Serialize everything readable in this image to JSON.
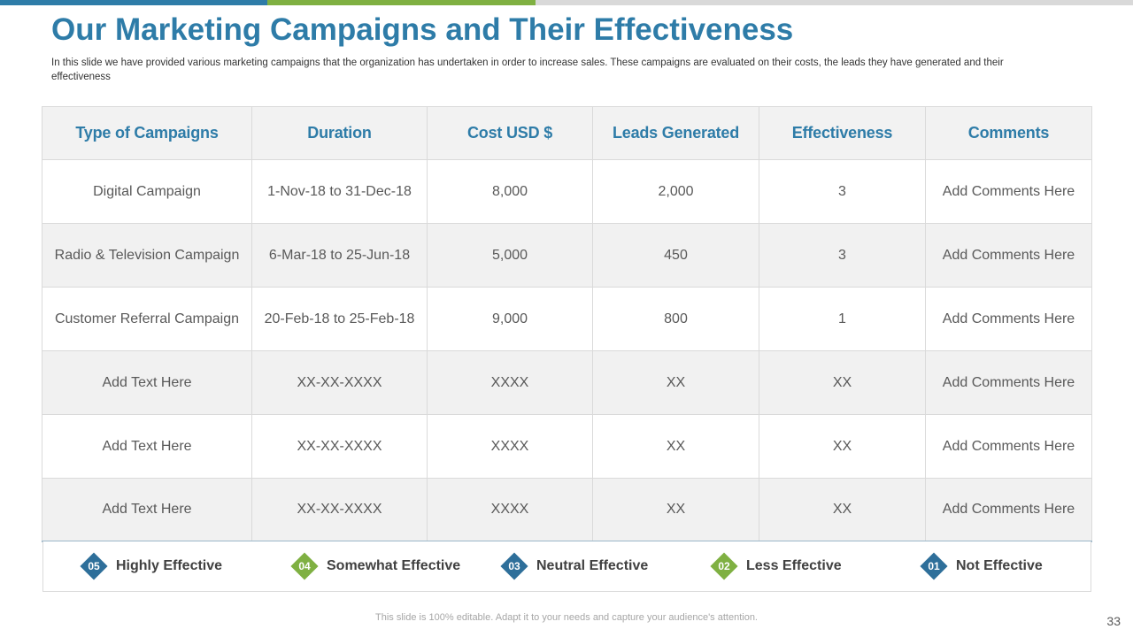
{
  "colors": {
    "accent_blue": "#2E7CA8",
    "accent_green": "#7FB042",
    "bar_gray": "#D9D9D9",
    "diamond_blue": "#2E6F9A"
  },
  "title": "Our Marketing Campaigns and Their Effectiveness",
  "subtitle": "In this slide we have provided various  marketing campaigns that the organization has undertaken  in order  to increase sales. These campaigns are evaluated  on their costs, the leads they have generated  and their effectiveness",
  "table": {
    "headers": [
      "Type of Campaigns",
      "Duration",
      "Cost USD $",
      "Leads Generated",
      "Effectiveness",
      "Comments"
    ],
    "rows": [
      [
        "Digital Campaign",
        "1-Nov-18 to 31-Dec-18",
        "8,000",
        "2,000",
        "3",
        "Add Comments Here"
      ],
      [
        "Radio & Television Campaign",
        "6-Mar-18 to 25-Jun-18",
        "5,000",
        "450",
        "3",
        "Add Comments Here"
      ],
      [
        "Customer Referral Campaign",
        "20-Feb-18 to 25-Feb-18",
        "9,000",
        "800",
        "1",
        "Add Comments Here"
      ],
      [
        "Add Text Here",
        "XX-XX-XXXX",
        "XXXX",
        "XX",
        "XX",
        "Add Comments Here"
      ],
      [
        "Add Text Here",
        "XX-XX-XXXX",
        "XXXX",
        "XX",
        "XX",
        "Add Comments Here"
      ],
      [
        "Add Text Here",
        "XX-XX-XXXX",
        "XXXX",
        "XX",
        "XX",
        "Add Comments Here"
      ]
    ]
  },
  "legend": [
    {
      "num": "05",
      "label": "Highly Effective",
      "color": "#2E6F9A"
    },
    {
      "num": "04",
      "label": "Somewhat Effective",
      "color": "#7FB042"
    },
    {
      "num": "03",
      "label": "Neutral Effective",
      "color": "#2E6F9A"
    },
    {
      "num": "02",
      "label": "Less Effective",
      "color": "#7FB042"
    },
    {
      "num": "01",
      "label": "Not Effective",
      "color": "#2E6F9A"
    }
  ],
  "footer": "This slide is 100% editable. Adapt it to your needs and capture your audience's attention.",
  "page_number": "33"
}
